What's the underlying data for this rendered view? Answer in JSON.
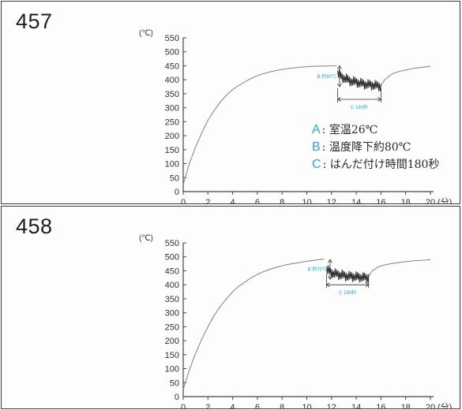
{
  "chart_data": [
    {
      "type": "line",
      "figure_label": "457",
      "y_unit": "(℃)",
      "x_unit": "(分)",
      "xlim": [
        0,
        20
      ],
      "ylim": [
        0,
        550
      ],
      "x_ticks": [
        0,
        2,
        4,
        6,
        8,
        10,
        12,
        14,
        16,
        18,
        20
      ],
      "y_ticks": [
        0,
        50,
        100,
        150,
        200,
        250,
        300,
        350,
        400,
        450,
        500,
        550
      ],
      "line_color": "#8a8a8a",
      "series": [
        {
          "x": [
            0,
            0.5,
            1,
            1.5,
            2,
            2.5,
            3,
            3.5,
            4,
            4.5,
            5,
            5.5,
            6,
            6.5,
            7,
            7.5,
            8,
            8.5,
            9,
            9.5,
            10,
            10.5,
            11,
            11.5,
            12,
            12.4
          ],
          "y": [
            25,
            100,
            160,
            210,
            255,
            290,
            320,
            345,
            365,
            380,
            393,
            405,
            415,
            422,
            428,
            433,
            437,
            440,
            443,
            445,
            447,
            448,
            449,
            449,
            450,
            450
          ]
        },
        {
          "x": [
            12.5,
            12.8,
            13.1,
            13.4,
            13.7,
            14.0,
            14.3,
            14.6,
            14.9,
            15.2,
            15.5,
            15.8,
            16.0
          ],
          "y": [
            425,
            410,
            405,
            398,
            394,
            392,
            388,
            385,
            383,
            382,
            380,
            378,
            375
          ]
        },
        {
          "x": [
            16.0,
            16.3,
            16.7,
            17,
            17.5,
            18,
            18.5,
            19,
            19.5,
            20
          ],
          "y": [
            380,
            400,
            415,
            423,
            430,
            435,
            440,
            443,
            446,
            448
          ]
        }
      ],
      "annotations": {
        "b_label": "B 約80℃",
        "c_label": "C 180秒"
      },
      "legend": [
        {
          "key": "A",
          "text": "室温26℃"
        },
        {
          "key": "B",
          "text": "温度降下約80℃"
        },
        {
          "key": "C",
          "text": "はんだ付け時間180秒"
        }
      ]
    },
    {
      "type": "line",
      "figure_label": "458",
      "y_unit": "(℃)",
      "x_unit": "(分)",
      "xlim": [
        0,
        20
      ],
      "ylim": [
        0,
        550
      ],
      "x_ticks": [
        0,
        2,
        4,
        6,
        8,
        10,
        12,
        14,
        16,
        18,
        20
      ],
      "y_ticks": [
        0,
        50,
        100,
        150,
        200,
        250,
        300,
        350,
        400,
        450,
        500,
        550
      ],
      "line_color": "#8a8a8a",
      "series": [
        {
          "x": [
            0,
            0.5,
            1,
            1.5,
            2,
            2.5,
            3,
            3.5,
            4,
            4.5,
            5,
            5.5,
            6,
            6.5,
            7,
            7.5,
            8,
            8.5,
            9,
            9.5,
            10,
            10.5,
            11,
            11.4
          ],
          "y": [
            25,
            95,
            155,
            205,
            250,
            290,
            322,
            350,
            375,
            395,
            410,
            425,
            437,
            447,
            455,
            462,
            468,
            473,
            477,
            480,
            484,
            487,
            490,
            492
          ]
        },
        {
          "x": [
            11.6,
            11.9,
            12.2,
            12.5,
            12.8,
            13.1,
            13.4,
            13.7,
            14.0,
            14.3,
            14.6,
            15.0
          ],
          "y": [
            455,
            445,
            440,
            437,
            435,
            432,
            430,
            430,
            428,
            428,
            426,
            425
          ]
        },
        {
          "x": [
            15.0,
            15.3,
            15.7,
            16,
            16.5,
            17,
            17.5,
            18,
            18.5,
            19,
            19.5,
            20
          ],
          "y": [
            430,
            450,
            462,
            468,
            473,
            477,
            480,
            483,
            485,
            487,
            488,
            490
          ]
        }
      ],
      "annotations": {
        "b_label": "B 約70℃",
        "c_label": "C 180秒"
      }
    }
  ]
}
